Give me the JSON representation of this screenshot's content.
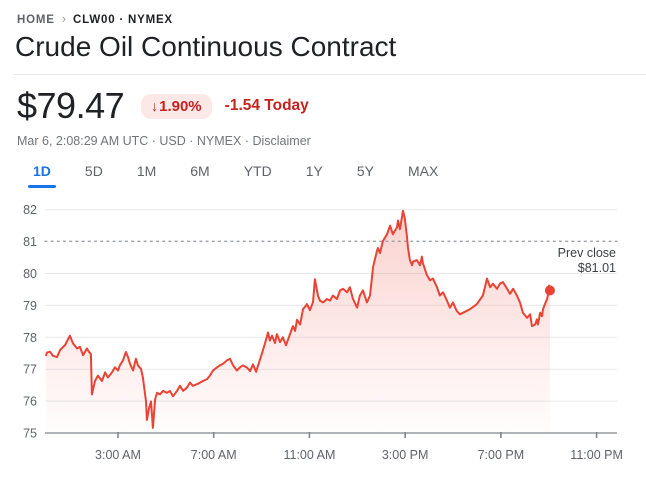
{
  "breadcrumb": {
    "home": "HOME",
    "separator": "›",
    "symbol": "CLW00 · NYMEX"
  },
  "title": "Crude Oil Continuous Contract",
  "quote": {
    "price": "$79.47",
    "change_arrow": "↓",
    "change_percent": "1.90%",
    "change_amount": "-1.54 Today",
    "meta_prefix": "Mar 6, 2:08:29 AM UTC · USD · NYMEX · ",
    "disclaimer": "Disclaimer"
  },
  "range_tabs": [
    {
      "label": "1D",
      "active": true
    },
    {
      "label": "5D",
      "active": false
    },
    {
      "label": "1M",
      "active": false
    },
    {
      "label": "6M",
      "active": false
    },
    {
      "label": "YTD",
      "active": false
    },
    {
      "label": "1Y",
      "active": false
    },
    {
      "label": "5Y",
      "active": false
    },
    {
      "label": "MAX",
      "active": false
    }
  ],
  "colors": {
    "line_red": "#ea4335",
    "down_red_text": "#c5221f",
    "badge_bg": "#fce8e6",
    "active_blue": "#1a73e8",
    "gridline": "#e8eaed",
    "axis": "#80868b",
    "tick_label": "#5f6368",
    "prev_close_dots": "#9aa0a6",
    "prev_close_text": "#3c4043"
  },
  "chart_data": {
    "type": "line",
    "title": "",
    "xlabel": "",
    "ylabel": "",
    "ylim": [
      75,
      82
    ],
    "grid": true,
    "y_ticks": [
      82,
      81,
      80,
      79,
      78,
      77,
      76,
      75
    ],
    "x_ticks": [
      {
        "hour": 3,
        "label": "3:00 AM"
      },
      {
        "hour": 7,
        "label": "7:00 AM"
      },
      {
        "hour": 11,
        "label": "11:00 AM"
      },
      {
        "hour": 15,
        "label": "3:00 PM"
      },
      {
        "hour": 19,
        "label": "7:00 PM"
      },
      {
        "hour": 23,
        "label": "11:00 PM"
      }
    ],
    "prev_close": {
      "value": 81.01,
      "label_line1": "Prev close",
      "label_line2": "$81.01"
    },
    "last_point": {
      "hour": 21.05,
      "value": 79.47
    },
    "series": [
      {
        "name": "CLW00 price",
        "color": "#ea4335",
        "points": [
          [
            0,
            77.44
          ],
          [
            0.03,
            77.52
          ],
          [
            0.16,
            77.55
          ],
          [
            0.28,
            77.42
          ],
          [
            0.45,
            77.38
          ],
          [
            0.58,
            77.6
          ],
          [
            0.79,
            77.76
          ],
          [
            0.99,
            78.05
          ],
          [
            1.12,
            77.81
          ],
          [
            1.29,
            77.65
          ],
          [
            1.41,
            77.7
          ],
          [
            1.54,
            77.44
          ],
          [
            1.7,
            77.65
          ],
          [
            1.79,
            77.54
          ],
          [
            1.87,
            77.48
          ],
          [
            1.91,
            76.21
          ],
          [
            2.04,
            76.63
          ],
          [
            2.16,
            76.8
          ],
          [
            2.33,
            76.63
          ],
          [
            2.46,
            76.9
          ],
          [
            2.58,
            76.74
          ],
          [
            2.75,
            76.9
          ],
          [
            2.87,
            77.06
          ],
          [
            3,
            76.96
          ],
          [
            3.08,
            77.12
          ],
          [
            3.21,
            77.28
          ],
          [
            3.33,
            77.54
          ],
          [
            3.42,
            77.38
          ],
          [
            3.5,
            77.17
          ],
          [
            3.63,
            76.96
          ],
          [
            3.75,
            77.33
          ],
          [
            3.83,
            77.12
          ],
          [
            3.96,
            77.01
          ],
          [
            4.04,
            76.74
          ],
          [
            4.17,
            75.99
          ],
          [
            4.21,
            75.41
          ],
          [
            4.3,
            75.78
          ],
          [
            4.38,
            75.99
          ],
          [
            4.46,
            75.16
          ],
          [
            4.55,
            76.05
          ],
          [
            4.63,
            76.26
          ],
          [
            4.75,
            76.21
          ],
          [
            4.88,
            76.32
          ],
          [
            5.05,
            76.26
          ],
          [
            5.17,
            76.32
          ],
          [
            5.3,
            76.15
          ],
          [
            5.47,
            76.32
          ],
          [
            5.59,
            76.48
          ],
          [
            5.72,
            76.32
          ],
          [
            5.88,
            76.42
          ],
          [
            6.01,
            76.58
          ],
          [
            6.13,
            76.48
          ],
          [
            6.3,
            76.53
          ],
          [
            6.43,
            76.58
          ],
          [
            6.55,
            76.63
          ],
          [
            6.72,
            76.69
          ],
          [
            6.84,
            76.8
          ],
          [
            6.97,
            76.96
          ],
          [
            7.14,
            77.06
          ],
          [
            7.26,
            77.12
          ],
          [
            7.39,
            77.17
          ],
          [
            7.56,
            77.28
          ],
          [
            7.68,
            77.33
          ],
          [
            7.81,
            77.12
          ],
          [
            7.97,
            76.96
          ],
          [
            8.1,
            77.06
          ],
          [
            8.22,
            77.12
          ],
          [
            8.39,
            77.05
          ],
          [
            8.52,
            76.94
          ],
          [
            8.64,
            77.15
          ],
          [
            8.77,
            76.92
          ],
          [
            8.89,
            77.2
          ],
          [
            9.02,
            77.5
          ],
          [
            9.14,
            77.8
          ],
          [
            9.27,
            78.15
          ],
          [
            9.35,
            77.9
          ],
          [
            9.44,
            78.05
          ],
          [
            9.56,
            77.82
          ],
          [
            9.64,
            78.1
          ],
          [
            9.77,
            77.85
          ],
          [
            9.89,
            78
          ],
          [
            10.02,
            77.75
          ],
          [
            10.1,
            77.92
          ],
          [
            10.19,
            78.1
          ],
          [
            10.31,
            78.35
          ],
          [
            10.4,
            78.2
          ],
          [
            10.48,
            78.55
          ],
          [
            10.61,
            78.4
          ],
          [
            10.73,
            78.88
          ],
          [
            10.9,
            79.04
          ],
          [
            11.02,
            78.85
          ],
          [
            11.15,
            79.1
          ],
          [
            11.23,
            79.82
          ],
          [
            11.36,
            79.3
          ],
          [
            11.44,
            79.15
          ],
          [
            11.57,
            79.09
          ],
          [
            11.73,
            79.2
          ],
          [
            11.86,
            79.15
          ],
          [
            11.98,
            79.31
          ],
          [
            12.15,
            79.2
          ],
          [
            12.28,
            79.47
          ],
          [
            12.4,
            79.52
          ],
          [
            12.57,
            79.41
          ],
          [
            12.69,
            79.57
          ],
          [
            12.82,
            79.2
          ],
          [
            12.99,
            78.93
          ],
          [
            13.11,
            79.31
          ],
          [
            13.24,
            79.47
          ],
          [
            13.4,
            79.09
          ],
          [
            13.53,
            79.31
          ],
          [
            13.66,
            80.21
          ],
          [
            13.82,
            80.7
          ],
          [
            13.86,
            80.8
          ],
          [
            13.95,
            80.64
          ],
          [
            14.07,
            81.02
          ],
          [
            14.24,
            81.23
          ],
          [
            14.37,
            81.5
          ],
          [
            14.49,
            81.23
          ],
          [
            14.66,
            81.45
          ],
          [
            14.7,
            81.66
          ],
          [
            14.78,
            81.39
          ],
          [
            14.91,
            81.97
          ],
          [
            14.99,
            81.71
          ],
          [
            15.08,
            81.12
          ],
          [
            15.12,
            80.8
          ],
          [
            15.2,
            80.42
          ],
          [
            15.29,
            80.26
          ],
          [
            15.33,
            80.37
          ],
          [
            15.49,
            80.42
          ],
          [
            15.62,
            80.26
          ],
          [
            15.7,
            80.53
          ],
          [
            15.74,
            80.32
          ],
          [
            15.91,
            79.95
          ],
          [
            16.04,
            79.79
          ],
          [
            16.16,
            79.84
          ],
          [
            16.33,
            79.57
          ],
          [
            16.45,
            79.31
          ],
          [
            16.58,
            79.41
          ],
          [
            16.75,
            79.15
          ],
          [
            16.87,
            78.93
          ],
          [
            17,
            79.09
          ],
          [
            17.16,
            78.82
          ],
          [
            17.29,
            78.72
          ],
          [
            17.42,
            78.77
          ],
          [
            17.71,
            78.88
          ],
          [
            18,
            79.04
          ],
          [
            18.25,
            79.31
          ],
          [
            18.42,
            79.84
          ],
          [
            18.55,
            79.57
          ],
          [
            18.67,
            79.68
          ],
          [
            18.84,
            79.52
          ],
          [
            18.96,
            79.68
          ],
          [
            19.09,
            79.73
          ],
          [
            19.26,
            79.52
          ],
          [
            19.38,
            79.36
          ],
          [
            19.51,
            79.52
          ],
          [
            19.67,
            79.31
          ],
          [
            19.8,
            79.09
          ],
          [
            19.92,
            78.77
          ],
          [
            20.09,
            78.61
          ],
          [
            20.22,
            78.72
          ],
          [
            20.3,
            78.35
          ],
          [
            20.43,
            78.4
          ],
          [
            20.51,
            78.56
          ],
          [
            20.55,
            78.4
          ],
          [
            20.64,
            78.77
          ],
          [
            20.72,
            78.66
          ],
          [
            20.76,
            78.88
          ],
          [
            20.84,
            79.04
          ],
          [
            20.93,
            79.2
          ],
          [
            20.97,
            79.36
          ],
          [
            21.01,
            79.62
          ],
          [
            21.05,
            79.47
          ]
        ]
      }
    ]
  }
}
